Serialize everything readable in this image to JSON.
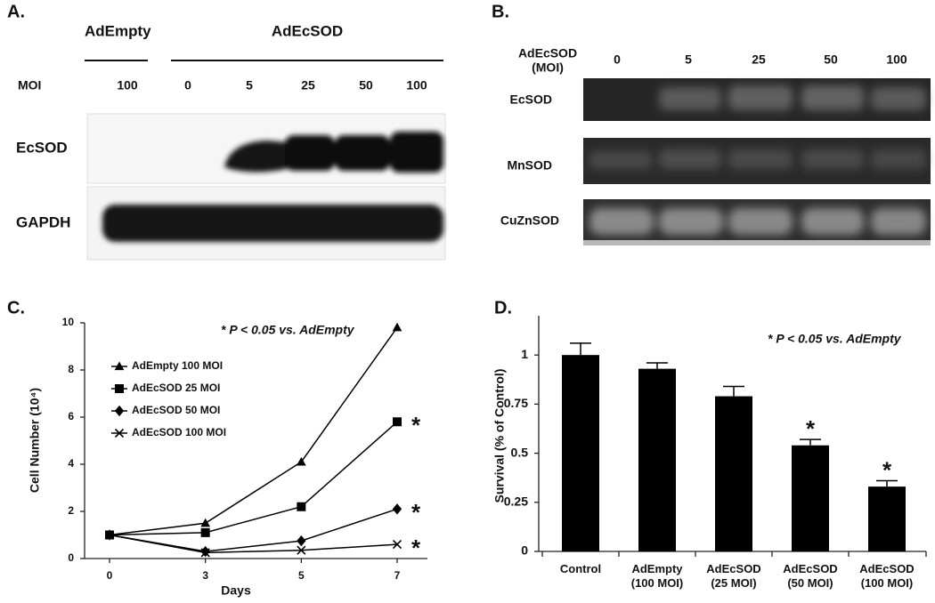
{
  "panel_a": {
    "label": "A.",
    "groups": [
      "AdEmpty",
      "AdEcSOD"
    ],
    "moi_label": "MOI",
    "moi": [
      "100",
      "0",
      "5",
      "25",
      "50",
      "100"
    ],
    "rows": [
      "EcSOD",
      "GAPDH"
    ]
  },
  "panel_b": {
    "label": "B.",
    "header": [
      "AdEcSOD",
      "(MOI)"
    ],
    "moi": [
      "0",
      "5",
      "25",
      "50",
      "100"
    ],
    "rows": [
      "EcSOD",
      "MnSOD",
      "CuZnSOD"
    ]
  },
  "chart_data": [
    {
      "type": "line",
      "panel_label": "C.",
      "annotation": "* P < 0.05 vs. AdEmpty",
      "x_label": "Days",
      "y_label": "Cell Number (10⁴)",
      "categories": [
        "0",
        "3",
        "5",
        "7"
      ],
      "ylim": [
        0,
        10
      ],
      "yticks": [
        0,
        2,
        4,
        6,
        8,
        10
      ],
      "series": [
        {
          "name": "AdEmpty 100 MOI",
          "color": "#000000",
          "marker": "triangle",
          "values": [
            1,
            1.5,
            4.1,
            9.8
          ]
        },
        {
          "name": "AdEcSOD 25 MOI",
          "color": "#000000",
          "marker": "square",
          "values": [
            1,
            1.1,
            2.2,
            5.8
          ],
          "annotation": "*"
        },
        {
          "name": "AdEcSOD 50 MOI",
          "color": "#000000",
          "marker": "diamond",
          "values": [
            1,
            0.3,
            0.75,
            2.1
          ],
          "annotation": "*"
        },
        {
          "name": "AdEcSOD 100 MOI",
          "color": "#000000",
          "marker": "x",
          "values": [
            1,
            0.25,
            0.35,
            0.6
          ],
          "annotation": "*"
        }
      ]
    },
    {
      "type": "bar",
      "panel_label": "D.",
      "annotation": "* P < 0.05 vs. AdEmpty",
      "y_label": "Survival (% of Control)",
      "categories": [
        "Control",
        "AdEmpty (100 MOI)",
        "AdEcSOD (25 MOI)",
        "AdEcSOD (50 MOI)",
        "AdEcSOD (100 MOI)"
      ],
      "values": [
        1,
        0.93,
        0.79,
        0.54,
        0.33
      ],
      "error_bars": [
        0.06,
        0.03,
        0.05,
        0.03,
        0.03
      ],
      "significance": [
        null,
        null,
        null,
        "*",
        "*"
      ],
      "color": "#000000",
      "ylim": [
        0,
        1.2
      ],
      "yticks": [
        0,
        0.25,
        0.5,
        0.75,
        1
      ]
    }
  ]
}
